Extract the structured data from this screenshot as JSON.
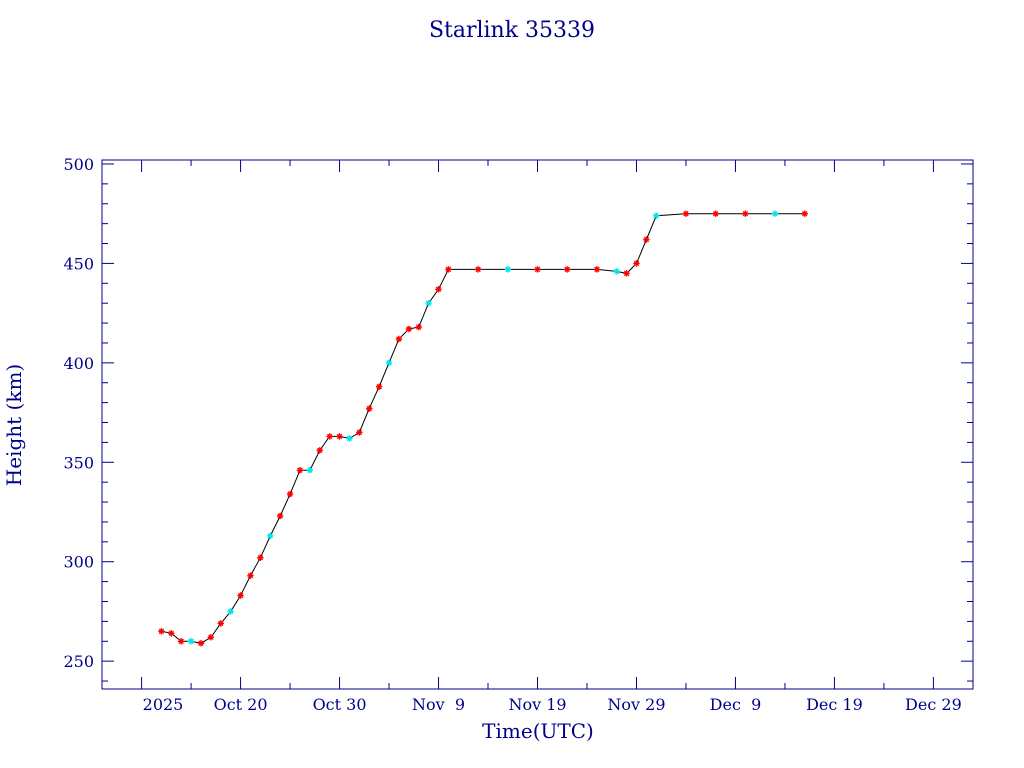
{
  "chart_data": {
    "type": "line",
    "title": "Starlink 35339",
    "xlabel": "Time(UTC)",
    "ylabel": "Height (km)",
    "x_axis_start_label": "2025",
    "xlim": [
      "2025-10-06",
      "2026-01-02"
    ],
    "ylim": [
      236,
      502
    ],
    "y_ticks": [
      250,
      300,
      350,
      400,
      450,
      500
    ],
    "x_ticks": [
      {
        "date": "2025-10-20",
        "label": "Oct 20"
      },
      {
        "date": "2025-10-30",
        "label": "Oct 30"
      },
      {
        "date": "2025-11-09",
        "label": "Nov  9"
      },
      {
        "date": "2025-11-19",
        "label": "Nov 19"
      },
      {
        "date": "2025-11-29",
        "label": "Nov 29"
      },
      {
        "date": "2025-12-09",
        "label": "Dec  9"
      },
      {
        "date": "2025-12-19",
        "label": "Dec 19"
      },
      {
        "date": "2025-12-29",
        "label": "Dec 29"
      }
    ],
    "grid": false,
    "colors": {
      "frame": "#00008b",
      "line": "#000000",
      "marker_primary": "#ff0000",
      "marker_secondary": "#00e5ee"
    },
    "series": [
      {
        "marker": "asterisk",
        "points": [
          [
            "2025-10-12",
            265
          ],
          [
            "2025-10-13",
            264
          ],
          [
            "2025-10-14",
            260
          ],
          [
            "2025-10-15",
            260
          ],
          [
            "2025-10-16",
            259
          ],
          [
            "2025-10-17",
            262
          ],
          [
            "2025-10-18",
            269
          ],
          [
            "2025-10-19",
            275
          ],
          [
            "2025-10-20",
            283
          ],
          [
            "2025-10-21",
            293
          ],
          [
            "2025-10-22",
            302
          ],
          [
            "2025-10-23",
            313
          ],
          [
            "2025-10-24",
            323
          ],
          [
            "2025-10-25",
            334
          ],
          [
            "2025-10-26",
            346
          ],
          [
            "2025-10-27",
            346
          ],
          [
            "2025-10-28",
            356
          ],
          [
            "2025-10-29",
            363
          ],
          [
            "2025-10-30",
            363
          ],
          [
            "2025-10-31",
            362
          ],
          [
            "2025-11-01",
            365
          ],
          [
            "2025-11-02",
            377
          ],
          [
            "2025-11-03",
            388
          ],
          [
            "2025-11-04",
            400
          ],
          [
            "2025-11-05",
            412
          ],
          [
            "2025-11-06",
            417
          ],
          [
            "2025-11-07",
            418
          ],
          [
            "2025-11-08",
            430
          ],
          [
            "2025-11-09",
            437
          ],
          [
            "2025-11-10",
            447
          ],
          [
            "2025-11-13",
            447
          ],
          [
            "2025-11-16",
            447
          ],
          [
            "2025-11-19",
            447
          ],
          [
            "2025-11-22",
            447
          ],
          [
            "2025-11-25",
            447
          ],
          [
            "2025-11-27",
            446
          ],
          [
            "2025-11-28",
            445
          ],
          [
            "2025-11-29",
            450
          ],
          [
            "2025-11-30",
            462
          ],
          [
            "2025-12-01",
            474
          ],
          [
            "2025-12-04",
            475
          ],
          [
            "2025-12-07",
            475
          ],
          [
            "2025-12-10",
            475
          ],
          [
            "2025-12-13",
            475
          ],
          [
            "2025-12-16",
            475
          ]
        ]
      }
    ]
  }
}
